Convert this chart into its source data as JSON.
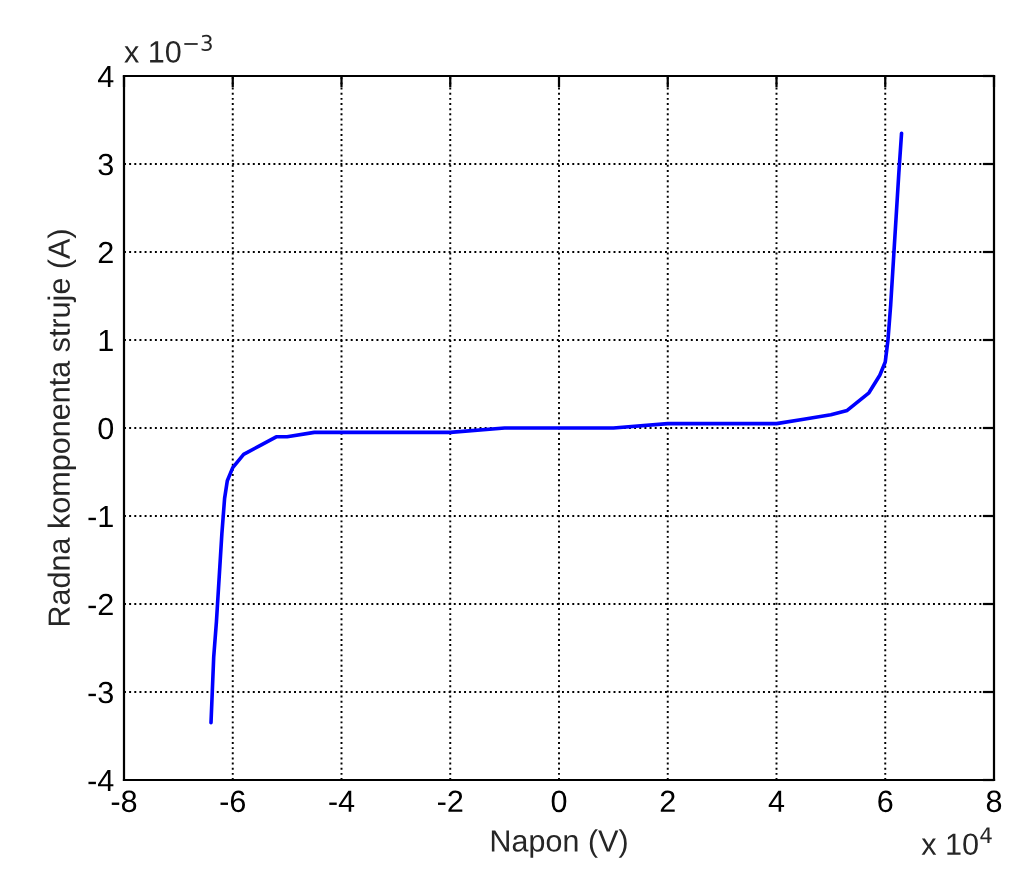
{
  "chart_data": {
    "type": "line",
    "xlabel": "Napon (V)",
    "ylabel": "Radna komponenta struje (A)",
    "annotations": [
      "x 10$^{−3}$",
      "x 10$^{4}$"
    ],
    "series": [
      {
        "color": "#0000ff",
        "x": [
          -6.4,
          -6.35,
          -6.3,
          -6.25,
          -6.2,
          -6.15,
          -6.1,
          -6.0,
          -5.8,
          -5.5,
          -5.2,
          -5.0,
          -4.5,
          -4.0,
          -3.0,
          -2.0,
          -1.0,
          0,
          1.0,
          2.0,
          3.0,
          3.5,
          4.0,
          4.5,
          5.0,
          5.3,
          5.5,
          5.7,
          5.8,
          5.9,
          6.0,
          6.05,
          6.1,
          6.15,
          6.2,
          6.25,
          6.3
        ],
        "values": [
          -3.35,
          -2.6,
          -2.2,
          -1.7,
          -1.2,
          -0.8,
          -0.6,
          -0.45,
          -0.3,
          -0.2,
          -0.1,
          -0.1,
          -0.05,
          -0.05,
          -0.05,
          -0.05,
          0,
          0,
          0,
          0.05,
          0.05,
          0.05,
          0.05,
          0.1,
          0.15,
          0.2,
          0.3,
          0.4,
          0.5,
          0.6,
          0.75,
          1.0,
          1.4,
          1.9,
          2.4,
          2.9,
          3.35
        ]
      }
    ],
    "xlim": [
      -8,
      8
    ],
    "xticks": [
      -8,
      -6,
      -4,
      -2,
      0,
      2,
      4,
      6,
      8
    ],
    "ylim": [
      -4,
      4
    ],
    "yticks": [
      -4,
      -3,
      -2,
      -1,
      0,
      1,
      2,
      3,
      4
    ],
    "grid": true,
    "line_style": "solid",
    "marker": "none",
    "legend": false
  }
}
